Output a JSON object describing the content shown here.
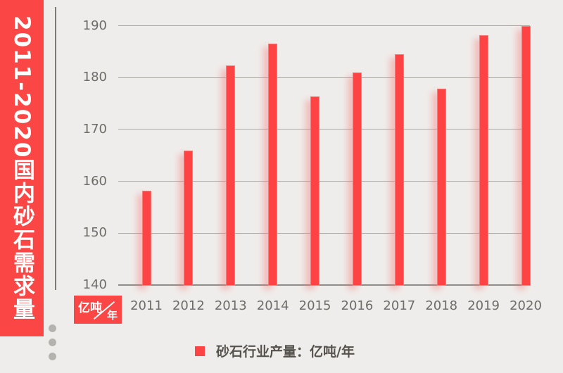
{
  "banner": {
    "title": "2011-2020国内砂石需求量",
    "bg_color": "#fb4646",
    "text_color": "#ffffff"
  },
  "chart_data": {
    "type": "bar",
    "title": "2011-2020国内砂石需求量",
    "categories": [
      "2011",
      "2012",
      "2013",
      "2014",
      "2015",
      "2016",
      "2017",
      "2018",
      "2019",
      "2020"
    ],
    "values": [
      158.2,
      165.9,
      182.3,
      186.5,
      176.4,
      181.0,
      184.5,
      177.8,
      188.2,
      190.0
    ],
    "ylim": [
      140,
      190
    ],
    "yticks": [
      140,
      150,
      160,
      170,
      180,
      190
    ],
    "grid": true,
    "bar_color": "#fd4343",
    "unit_badge": {
      "numerator": "亿吨",
      "denominator": "年"
    },
    "legend": {
      "label": "砂石行业产量：亿吨/年",
      "position": "bottom",
      "marker_color": "#fd4343"
    }
  },
  "colors": {
    "background": "#efedeb",
    "accent_red": "#fb4646",
    "gridline": "#aaa8a4",
    "axis_line": "#8f8d89",
    "tick_text": "#6e6c68",
    "legend_text": "#56534e"
  },
  "decor": {
    "dots_count": 3,
    "dot_color": "#b5b3af"
  }
}
